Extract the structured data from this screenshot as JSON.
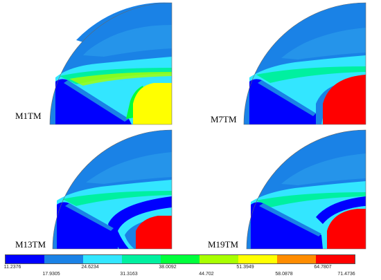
{
  "panels": [
    {
      "label": "M1TM",
      "core": "#ffff00"
    },
    {
      "label": "M7TM",
      "core": "#ff0000"
    },
    {
      "label": "M13TM",
      "core": "#ff0000"
    },
    {
      "label": "M19TM",
      "core": "#ff0000"
    }
  ],
  "legend": {
    "colors": [
      "#0000ff",
      "#1a82e6",
      "#33e6ff",
      "#00f0a0",
      "#00ff3c",
      "#a8ff00",
      "#ffff00",
      "#ff8c00",
      "#ff0000"
    ],
    "ticks_top": [
      "11.2376",
      "24.6234",
      "38.0092",
      "51.3949",
      "64.7807"
    ],
    "ticks_bottom": [
      "17.9305",
      "31.3163",
      "44.702",
      "58.0878",
      "71.4736"
    ]
  }
}
